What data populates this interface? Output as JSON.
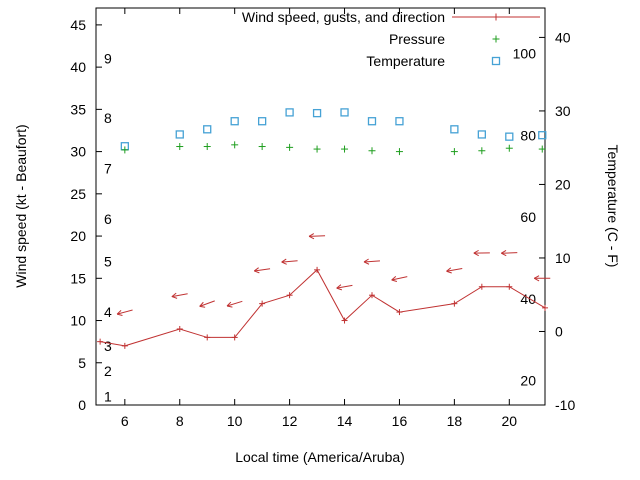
{
  "chart_data": {
    "type": "line",
    "title": "",
    "xlabel": "Local time (America/Aruba)",
    "ylabel_left": "Wind speed (kt - Beaufort)",
    "ylabel_right": "Temperature (C - F)",
    "x_range": [
      4.95,
      21.3
    ],
    "y_left_range_kt": [
      0,
      47
    ],
    "y_right_range_c": [
      -10,
      44
    ],
    "x_ticks": [
      6,
      8,
      10,
      12,
      14,
      16,
      18,
      20
    ],
    "y_left_ticks_kt": [
      0,
      5,
      10,
      15,
      20,
      25,
      30,
      35,
      40,
      45
    ],
    "y_right_ticks_c": [
      -10,
      0,
      10,
      20,
      30,
      40
    ],
    "beaufort_scale_labels": [
      {
        "label": "1",
        "kt": 1
      },
      {
        "label": "2",
        "kt": 4
      },
      {
        "label": "3",
        "kt": 7
      },
      {
        "label": "4",
        "kt": 11
      },
      {
        "label": "5",
        "kt": 17
      },
      {
        "label": "6",
        "kt": 22
      },
      {
        "label": "7",
        "kt": 28
      },
      {
        "label": "8",
        "kt": 34
      },
      {
        "label": "9",
        "kt": 41
      }
    ],
    "fahrenheit_scale_labels": [
      20,
      40,
      60,
      80,
      100
    ],
    "legend": [
      {
        "label": "Wind speed, gusts, and direction",
        "marker": "line-with-plus",
        "color": "#c03232"
      },
      {
        "label": "Pressure",
        "marker": "plus",
        "color": "#1e9e1e"
      },
      {
        "label": "Temperature",
        "marker": "open-square",
        "color": "#46a2d5"
      }
    ],
    "series": {
      "wind_speed_kt": {
        "hours": [
          5.1,
          6,
          8,
          9,
          10,
          11,
          12,
          13,
          14,
          15,
          16,
          18,
          19,
          20,
          21.3
        ],
        "values": [
          7.5,
          7,
          9,
          8,
          8,
          12,
          13,
          16,
          10,
          13,
          11,
          12,
          14,
          14,
          11.5
        ]
      },
      "wind_gusts_kt": {
        "hours": [
          6,
          8,
          9,
          10,
          11,
          12,
          13,
          14,
          15,
          16,
          18,
          19,
          20,
          21.2
        ],
        "values": [
          11,
          13,
          12,
          12,
          16,
          17,
          20,
          14,
          17,
          15,
          16,
          18,
          18,
          15
        ],
        "arrow_angles_deg": [
          195,
          190,
          200,
          197,
          188,
          185,
          182,
          190,
          184,
          192,
          190,
          181,
          182,
          180
        ]
      },
      "pressure_left_axis_units": {
        "hours": [
          6,
          8,
          9,
          10,
          11,
          12,
          13,
          14,
          15,
          16,
          18,
          19,
          20,
          21.2
        ],
        "values": [
          30.2,
          30.6,
          30.6,
          30.8,
          30.6,
          30.5,
          30.3,
          30.3,
          30.1,
          30.0,
          30.0,
          30.1,
          30.4,
          30.3
        ]
      },
      "temperature_c": {
        "hours": [
          6,
          8,
          9,
          10,
          11,
          12,
          13,
          14,
          15,
          16,
          18,
          19,
          20,
          21.2
        ],
        "values": [
          25.2,
          26.8,
          27.5,
          28.6,
          28.6,
          29.8,
          29.7,
          29.8,
          28.6,
          28.6,
          27.5,
          26.8,
          26.5,
          26.7
        ]
      }
    },
    "axis_color": "#000000",
    "background": "#ffffff"
  }
}
